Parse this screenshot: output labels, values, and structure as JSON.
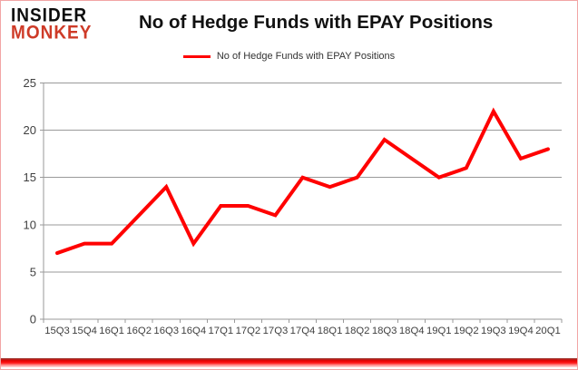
{
  "logo": {
    "line1": "INSIDER",
    "line2": "MONKEY"
  },
  "header": {
    "title": "No of Hedge Funds with EPAY Positions"
  },
  "legend": {
    "label": "No of Hedge Funds with EPAY Positions"
  },
  "colors": {
    "line": "#ff0000",
    "logo_black": "#0d0d0d",
    "logo_red": "#ce3b28",
    "gridline": "#9a9a9a",
    "axis_text": "#3f3f3f",
    "frame_border": "#f2a5a5"
  },
  "chart_data": {
    "type": "line",
    "title": "No of Hedge Funds with EPAY Positions",
    "series_name": "No of Hedge Funds with EPAY Positions",
    "categories": [
      "15Q3",
      "15Q4",
      "16Q1",
      "16Q2",
      "16Q3",
      "16Q4",
      "17Q1",
      "17Q2",
      "17Q3",
      "17Q4",
      "18Q1",
      "18Q2",
      "18Q3",
      "18Q4",
      "19Q1",
      "19Q2",
      "19Q3",
      "19Q4",
      "20Q1"
    ],
    "values": [
      7,
      8,
      8,
      11,
      14,
      8,
      12,
      12,
      11,
      15,
      14,
      15,
      19,
      17,
      15,
      16,
      22,
      17,
      18
    ],
    "ylim": [
      0,
      25
    ],
    "y_ticks": [
      0,
      5,
      10,
      15,
      20,
      25
    ],
    "grid": true,
    "legend_position": "top-center"
  }
}
